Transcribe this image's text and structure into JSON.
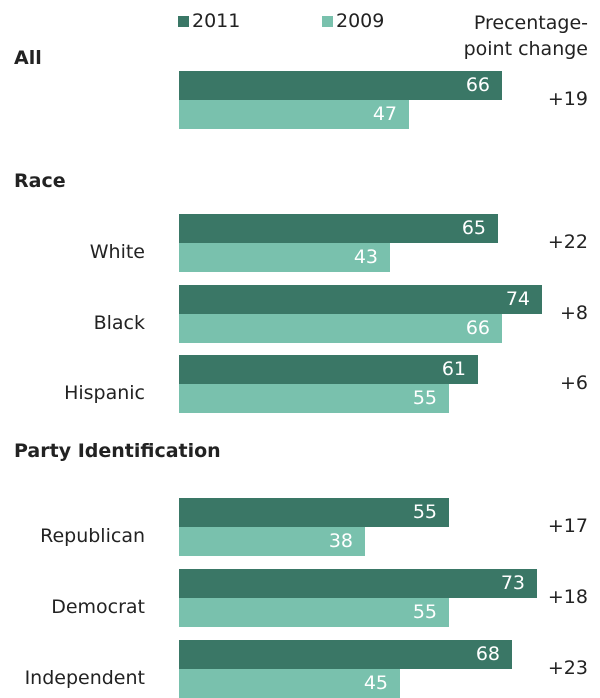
{
  "colors": {
    "series_2011": "#3a7766",
    "series_2009": "#79c1ad"
  },
  "legend": [
    {
      "label": "2011",
      "color": "#3a7766"
    },
    {
      "label": "2009",
      "color": "#79c1ad"
    }
  ],
  "change_header": [
    "Precentage-",
    "point change"
  ],
  "chart_data": {
    "type": "bar",
    "orientation": "horizontal",
    "series": [
      {
        "name": "2011",
        "values": [
          66,
          65,
          74,
          61,
          55,
          73,
          68
        ]
      },
      {
        "name": "2009",
        "values": [
          47,
          43,
          66,
          55,
          38,
          55,
          45
        ]
      }
    ],
    "sections": [
      {
        "title": "All",
        "rows": [
          {
            "label": "",
            "v2011": 66,
            "v2009": 47,
            "change": "+19"
          }
        ]
      },
      {
        "title": "Race",
        "rows": [
          {
            "label": "White",
            "v2011": 65,
            "v2009": 43,
            "change": "+22"
          },
          {
            "label": "Black",
            "v2011": 74,
            "v2009": 66,
            "change": "+8"
          },
          {
            "label": "Hispanic",
            "v2011": 61,
            "v2009": 55,
            "change": "+6"
          }
        ]
      },
      {
        "title": "Party Identification",
        "rows": [
          {
            "label": "Republican",
            "v2011": 55,
            "v2009": 38,
            "change": "+17"
          },
          {
            "label": "Democrat",
            "v2011": 73,
            "v2009": 55,
            "change": "+18"
          },
          {
            "label": "Independent",
            "v2011": 68,
            "v2009": 45,
            "change": "+23"
          }
        ]
      }
    ],
    "grid": false,
    "legend_position": "top"
  }
}
